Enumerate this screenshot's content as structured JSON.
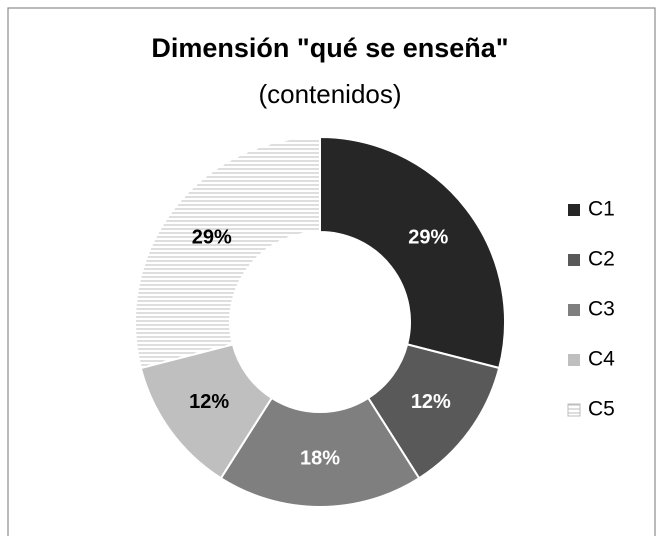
{
  "chart_data": {
    "type": "donut",
    "title": "Dimensión \"qué se enseña\"",
    "subtitle": "(contenidos)",
    "categories": [
      "C1",
      "C2",
      "C3",
      "C4",
      "C5"
    ],
    "values": [
      29,
      12,
      18,
      12,
      29
    ],
    "value_labels": [
      "29%",
      "12%",
      "18%",
      "12%",
      "29%"
    ],
    "colors": [
      "#262626",
      "#595959",
      "#7f7f7f",
      "#bfbfbf",
      "#f2f2f2"
    ],
    "hatched": [
      false,
      false,
      false,
      false,
      true
    ],
    "legend": "right"
  }
}
